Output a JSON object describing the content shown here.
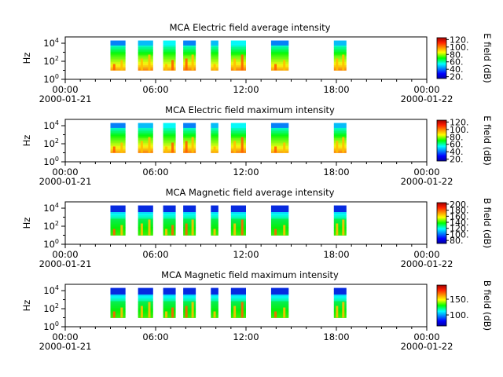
{
  "chart_data": [
    {
      "type": "heatmap",
      "title": "MCA  Electric field average intensity",
      "ylabel": "Hz",
      "yscale": "log",
      "ylim": [
        1,
        50000
      ],
      "yticks": [
        {
          "base": "10",
          "exp": "0"
        },
        {
          "base": "10",
          "exp": "2"
        },
        {
          "base": "10",
          "exp": "4"
        }
      ],
      "xlim": [
        "2000-01-21 00:00",
        "2000-01-22 00:00"
      ],
      "xticks": [
        {
          "time": "00:00",
          "date": "2000-01-21"
        },
        {
          "time": "06:00",
          "date": ""
        },
        {
          "time": "12:00",
          "date": ""
        },
        {
          "time": "18:00",
          "date": ""
        },
        {
          "time": "00:00",
          "date": "2000-01-22"
        }
      ],
      "colorbar": {
        "label": "E field (dB)",
        "range": [
          15,
          125
        ],
        "ticks": [
          "20.",
          "40.",
          "60.",
          "80.",
          "100.",
          "120."
        ]
      },
      "freq_range_hz": [
        10,
        20000
      ],
      "data_intervals": [
        {
          "start": "03:00",
          "end": "04:00"
        },
        {
          "start": "04:50",
          "end": "05:50"
        },
        {
          "start": "06:30",
          "end": "07:20"
        },
        {
          "start": "07:50",
          "end": "08:40"
        },
        {
          "start": "09:40",
          "end": "10:10"
        },
        {
          "start": "11:00",
          "end": "12:00"
        },
        {
          "start": "13:40",
          "end": "14:50"
        },
        {
          "start": "17:50",
          "end": "18:40"
        }
      ]
    },
    {
      "type": "heatmap",
      "title": "MCA  Electric field maximum intensity",
      "ylabel": "Hz",
      "yscale": "log",
      "ylim": [
        1,
        50000
      ],
      "yticks": [
        {
          "base": "10",
          "exp": "0"
        },
        {
          "base": "10",
          "exp": "2"
        },
        {
          "base": "10",
          "exp": "4"
        }
      ],
      "xlim": [
        "2000-01-21 00:00",
        "2000-01-22 00:00"
      ],
      "xticks": [
        {
          "time": "00:00",
          "date": "2000-01-21"
        },
        {
          "time": "06:00",
          "date": ""
        },
        {
          "time": "12:00",
          "date": ""
        },
        {
          "time": "18:00",
          "date": ""
        },
        {
          "time": "00:00",
          "date": "2000-01-22"
        }
      ],
      "colorbar": {
        "label": "E field (dB)",
        "range": [
          15,
          125
        ],
        "ticks": [
          "20.",
          "40.",
          "60.",
          "80.",
          "100.",
          "120."
        ]
      },
      "freq_range_hz": [
        10,
        20000
      ],
      "data_intervals": [
        {
          "start": "03:00",
          "end": "04:00"
        },
        {
          "start": "04:50",
          "end": "05:50"
        },
        {
          "start": "06:30",
          "end": "07:20"
        },
        {
          "start": "07:50",
          "end": "08:40"
        },
        {
          "start": "09:40",
          "end": "10:10"
        },
        {
          "start": "11:00",
          "end": "12:00"
        },
        {
          "start": "13:40",
          "end": "14:50"
        },
        {
          "start": "17:50",
          "end": "18:40"
        }
      ]
    },
    {
      "type": "heatmap",
      "title": "MCA  Magnetic field average intensity",
      "ylabel": "Hz",
      "yscale": "log",
      "ylim": [
        1,
        50000
      ],
      "yticks": [
        {
          "base": "10",
          "exp": "0"
        },
        {
          "base": "10",
          "exp": "2"
        },
        {
          "base": "10",
          "exp": "4"
        }
      ],
      "xlim": [
        "2000-01-21 00:00",
        "2000-01-22 00:00"
      ],
      "xticks": [
        {
          "time": "00:00",
          "date": "2000-01-21"
        },
        {
          "time": "06:00",
          "date": ""
        },
        {
          "time": "12:00",
          "date": ""
        },
        {
          "time": "18:00",
          "date": ""
        },
        {
          "time": "00:00",
          "date": "2000-01-22"
        }
      ],
      "colorbar": {
        "label": "B field (dB)",
        "range": [
          70,
          205
        ],
        "ticks": [
          "80.",
          "100.",
          "120.",
          "140.",
          "160.",
          "180.",
          "200."
        ]
      },
      "freq_range_hz": [
        10,
        20000
      ],
      "data_intervals": [
        {
          "start": "03:00",
          "end": "04:00"
        },
        {
          "start": "04:50",
          "end": "05:50"
        },
        {
          "start": "06:30",
          "end": "07:20"
        },
        {
          "start": "07:50",
          "end": "08:40"
        },
        {
          "start": "09:40",
          "end": "10:10"
        },
        {
          "start": "11:00",
          "end": "12:00"
        },
        {
          "start": "13:40",
          "end": "14:50"
        },
        {
          "start": "17:50",
          "end": "18:40"
        }
      ]
    },
    {
      "type": "heatmap",
      "title": "MCA  Magnetic field maximum intensity",
      "ylabel": "Hz",
      "yscale": "log",
      "ylim": [
        1,
        50000
      ],
      "yticks": [
        {
          "base": "10",
          "exp": "0"
        },
        {
          "base": "10",
          "exp": "2"
        },
        {
          "base": "10",
          "exp": "4"
        }
      ],
      "xlim": [
        "2000-01-21 00:00",
        "2000-01-22 00:00"
      ],
      "xticks": [
        {
          "time": "00:00",
          "date": "2000-01-21"
        },
        {
          "time": "06:00",
          "date": ""
        },
        {
          "time": "12:00",
          "date": ""
        },
        {
          "time": "18:00",
          "date": ""
        },
        {
          "time": "00:00",
          "date": "2000-01-22"
        }
      ],
      "colorbar": {
        "label": "B field (dB)",
        "range": [
          65,
          195
        ],
        "ticks": [
          "100.",
          "150."
        ]
      },
      "freq_range_hz": [
        10,
        20000
      ],
      "data_intervals": [
        {
          "start": "03:00",
          "end": "04:00"
        },
        {
          "start": "04:50",
          "end": "05:50"
        },
        {
          "start": "06:30",
          "end": "07:20"
        },
        {
          "start": "07:50",
          "end": "08:40"
        },
        {
          "start": "09:40",
          "end": "10:10"
        },
        {
          "start": "11:00",
          "end": "12:00"
        },
        {
          "start": "13:40",
          "end": "14:50"
        },
        {
          "start": "17:50",
          "end": "18:40"
        }
      ]
    }
  ]
}
